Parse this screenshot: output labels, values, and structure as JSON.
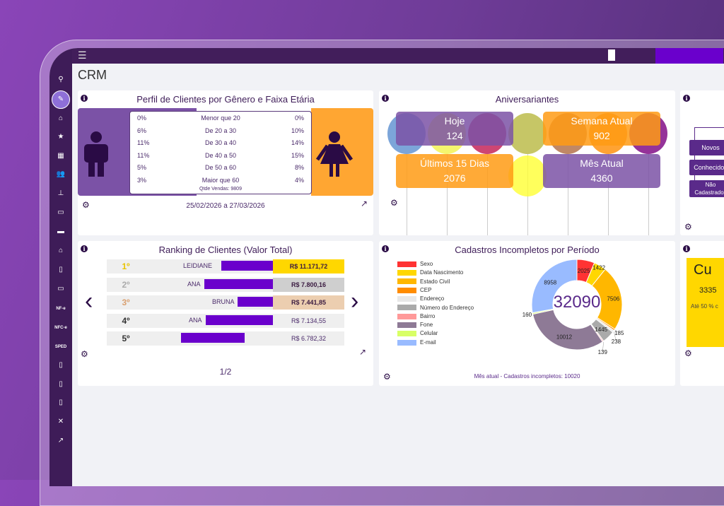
{
  "topbar": {
    "page_title": "CRM"
  },
  "sidebar": {
    "items": [
      {
        "icon": "search-icon",
        "glyph": "⚲"
      },
      {
        "icon": "crm-icon",
        "glyph": "✎"
      },
      {
        "icon": "home-icon",
        "glyph": "⌂"
      },
      {
        "icon": "star-icon",
        "glyph": "★"
      },
      {
        "icon": "building-icon",
        "glyph": "▦"
      },
      {
        "icon": "users-icon",
        "glyph": "👥"
      },
      {
        "icon": "sitemap-icon",
        "glyph": "⊥"
      },
      {
        "icon": "money-icon",
        "glyph": "▭"
      },
      {
        "icon": "box-icon",
        "glyph": "▬"
      },
      {
        "icon": "bank-icon",
        "glyph": "⌂"
      },
      {
        "icon": "invoice-icon",
        "glyph": "▯"
      },
      {
        "icon": "card-icon",
        "glyph": "▭"
      },
      {
        "label": "NF-e"
      },
      {
        "label": "NFC-e"
      },
      {
        "label": "SPED"
      },
      {
        "icon": "clipboard-icon",
        "glyph": "▯"
      },
      {
        "icon": "clipboard2-icon",
        "glyph": "▯"
      },
      {
        "icon": "document-icon",
        "glyph": "▯"
      },
      {
        "icon": "tools-icon",
        "glyph": "✕"
      },
      {
        "icon": "chart-icon",
        "glyph": "↗"
      }
    ]
  },
  "perfil": {
    "title": "Perfil de Clientes por Gênero e Faixa Etária",
    "rows": [
      {
        "m": "0%",
        "faixa": "Menor que 20",
        "f": "0%"
      },
      {
        "m": "6%",
        "faixa": "De 20 a 30",
        "f": "10%"
      },
      {
        "m": "11%",
        "faixa": "De 30 a 40",
        "f": "14%"
      },
      {
        "m": "11%",
        "faixa": "De 40 a 50",
        "f": "15%"
      },
      {
        "m": "5%",
        "faixa": "De 50 a 60",
        "f": "8%"
      },
      {
        "m": "3%",
        "faixa": "Maior que 60",
        "f": "4%"
      }
    ],
    "qtde": "Qtde Vendas: 9809",
    "periodo": "25/02/2026 a 27/03/2026"
  },
  "aniv": {
    "title": "Aniversariantes",
    "hoje_label": "Hoje",
    "hoje": "124",
    "semana_label": "Semana Atual",
    "semana": "902",
    "ult_label": "Últimos 15 Dias",
    "ult": "2076",
    "mes_label": "Mês Atual",
    "mes": "4360"
  },
  "funil": {
    "items": [
      "Novos",
      "Conhecidos",
      "Não Cadastrados"
    ]
  },
  "ranking": {
    "title": "Ranking de Clientes (Valor Total)",
    "rows": [
      {
        "pos": "1º",
        "name": "LEIDIANE",
        "value": "R$ 11.171,72",
        "bg": "#ffd700"
      },
      {
        "pos": "2º",
        "name": "ANA",
        "value": "R$ 7.800,16",
        "bg": "#cfcfcf"
      },
      {
        "pos": "3º",
        "name": "BRUNA",
        "value": "R$ 7.441,85",
        "bg": "#ecceb0"
      },
      {
        "pos": "4º",
        "name": "ANA",
        "value": "R$ 7.134,55",
        "bg": "#efefef"
      },
      {
        "pos": "5º",
        "name": "",
        "value": "R$ 6.782,32",
        "bg": "#efefef"
      }
    ],
    "page": "1/2"
  },
  "cadastros": {
    "title": "Cadastros Incompletos por Período",
    "total": "32090",
    "footer": "Mês atual - Cadastros incompletos: 10020"
  },
  "chart_data": {
    "type": "pie",
    "title": "Cadastros Incompletos por Período",
    "center_label": "32090",
    "categories": [
      "Sexo",
      "Data Nascimento",
      "Estado Civil",
      "CEP",
      "Endereço",
      "Número do Endereço",
      "Bairro",
      "Fone",
      "Celular",
      "E-mail"
    ],
    "values": [
      2025,
      1422,
      7506,
      185,
      238,
      1445,
      139,
      10012,
      160,
      8958
    ],
    "colors": [
      "#f33",
      "#ffd700",
      "#ffb700",
      "#ff8c00",
      "#e8e8e8",
      "#aaa",
      "#f99",
      "#8e7a96",
      "#d8ff66",
      "#99bbff"
    ],
    "legend": "left"
  },
  "cupom": {
    "title": "Cu",
    "value": "3335",
    "sub": "Até 50 % c"
  }
}
